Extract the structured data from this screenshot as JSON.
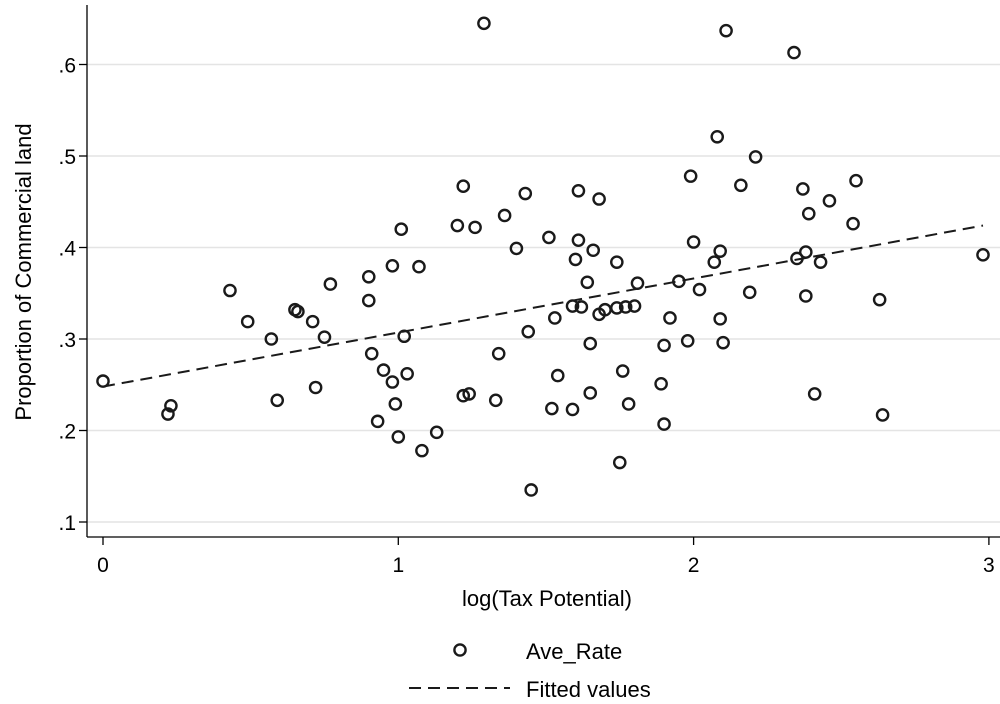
{
  "chart_data": {
    "type": "scatter",
    "xlabel": "log(Tax Potential)",
    "ylabel": "Proportion of Commercial land",
    "xlim": [
      0,
      3
    ],
    "ylim": [
      0.1,
      0.65
    ],
    "x_ticks": [
      {
        "value": 0,
        "label": "0"
      },
      {
        "value": 1,
        "label": "1"
      },
      {
        "value": 2,
        "label": "2"
      },
      {
        "value": 3,
        "label": "3"
      }
    ],
    "y_ticks": [
      {
        "value": 0.1,
        "label": ".1"
      },
      {
        "value": 0.2,
        "label": ".2"
      },
      {
        "value": 0.3,
        "label": ".3"
      },
      {
        "value": 0.4,
        "label": ".4"
      },
      {
        "value": 0.5,
        "label": ".5"
      },
      {
        "value": 0.6,
        "label": ".6"
      }
    ],
    "grid": "horizontal",
    "legend_position": "bottom",
    "series": [
      {
        "name": "Ave_Rate",
        "kind": "scatter",
        "marker": "hollow-circle",
        "color": "#1a1a1a",
        "points": [
          [
            0.0,
            0.254
          ],
          [
            0.22,
            0.218
          ],
          [
            0.23,
            0.227
          ],
          [
            0.43,
            0.353
          ],
          [
            0.49,
            0.319
          ],
          [
            0.57,
            0.3
          ],
          [
            0.59,
            0.233
          ],
          [
            0.65,
            0.332
          ],
          [
            0.66,
            0.33
          ],
          [
            0.71,
            0.319
          ],
          [
            0.72,
            0.247
          ],
          [
            0.75,
            0.302
          ],
          [
            0.77,
            0.36
          ],
          [
            0.9,
            0.368
          ],
          [
            0.9,
            0.342
          ],
          [
            0.91,
            0.284
          ],
          [
            0.93,
            0.21
          ],
          [
            0.95,
            0.266
          ],
          [
            0.98,
            0.38
          ],
          [
            0.98,
            0.253
          ],
          [
            0.99,
            0.229
          ],
          [
            1.0,
            0.193
          ],
          [
            1.01,
            0.42
          ],
          [
            1.02,
            0.303
          ],
          [
            1.03,
            0.262
          ],
          [
            1.07,
            0.379
          ],
          [
            1.08,
            0.178
          ],
          [
            1.13,
            0.198
          ],
          [
            1.2,
            0.424
          ],
          [
            1.22,
            0.467
          ],
          [
            1.22,
            0.238
          ],
          [
            1.24,
            0.24
          ],
          [
            1.26,
            0.422
          ],
          [
            1.29,
            0.645
          ],
          [
            1.33,
            0.233
          ],
          [
            1.34,
            0.284
          ],
          [
            1.36,
            0.435
          ],
          [
            1.4,
            0.399
          ],
          [
            1.43,
            0.459
          ],
          [
            1.44,
            0.308
          ],
          [
            1.45,
            0.135
          ],
          [
            1.51,
            0.411
          ],
          [
            1.52,
            0.224
          ],
          [
            1.53,
            0.323
          ],
          [
            1.54,
            0.26
          ],
          [
            1.59,
            0.336
          ],
          [
            1.59,
            0.223
          ],
          [
            1.6,
            0.387
          ],
          [
            1.61,
            0.408
          ],
          [
            1.61,
            0.462
          ],
          [
            1.62,
            0.335
          ],
          [
            1.64,
            0.362
          ],
          [
            1.65,
            0.241
          ],
          [
            1.65,
            0.295
          ],
          [
            1.66,
            0.397
          ],
          [
            1.68,
            0.453
          ],
          [
            1.68,
            0.327
          ],
          [
            1.7,
            0.332
          ],
          [
            1.74,
            0.384
          ],
          [
            1.74,
            0.334
          ],
          [
            1.75,
            0.165
          ],
          [
            1.76,
            0.265
          ],
          [
            1.77,
            0.335
          ],
          [
            1.78,
            0.229
          ],
          [
            1.8,
            0.336
          ],
          [
            1.81,
            0.361
          ],
          [
            1.89,
            0.251
          ],
          [
            1.9,
            0.207
          ],
          [
            1.9,
            0.293
          ],
          [
            1.92,
            0.323
          ],
          [
            1.95,
            0.363
          ],
          [
            1.98,
            0.298
          ],
          [
            1.99,
            0.478
          ],
          [
            2.0,
            0.406
          ],
          [
            2.02,
            0.354
          ],
          [
            2.07,
            0.384
          ],
          [
            2.08,
            0.521
          ],
          [
            2.09,
            0.396
          ],
          [
            2.09,
            0.322
          ],
          [
            2.1,
            0.296
          ],
          [
            2.11,
            0.637
          ],
          [
            2.16,
            0.468
          ],
          [
            2.19,
            0.351
          ],
          [
            2.21,
            0.499
          ],
          [
            2.34,
            0.613
          ],
          [
            2.35,
            0.388
          ],
          [
            2.37,
            0.464
          ],
          [
            2.38,
            0.395
          ],
          [
            2.38,
            0.347
          ],
          [
            2.39,
            0.437
          ],
          [
            2.41,
            0.24
          ],
          [
            2.43,
            0.384
          ],
          [
            2.46,
            0.451
          ],
          [
            2.54,
            0.426
          ],
          [
            2.55,
            0.473
          ],
          [
            2.63,
            0.343
          ],
          [
            2.64,
            0.217
          ],
          [
            2.98,
            0.392
          ]
        ]
      },
      {
        "name": "Fitted values",
        "kind": "line",
        "line_style": "dashed",
        "color": "#1a1a1a",
        "points": [
          [
            0.0,
            0.248
          ],
          [
            2.98,
            0.424
          ]
        ]
      }
    ]
  }
}
